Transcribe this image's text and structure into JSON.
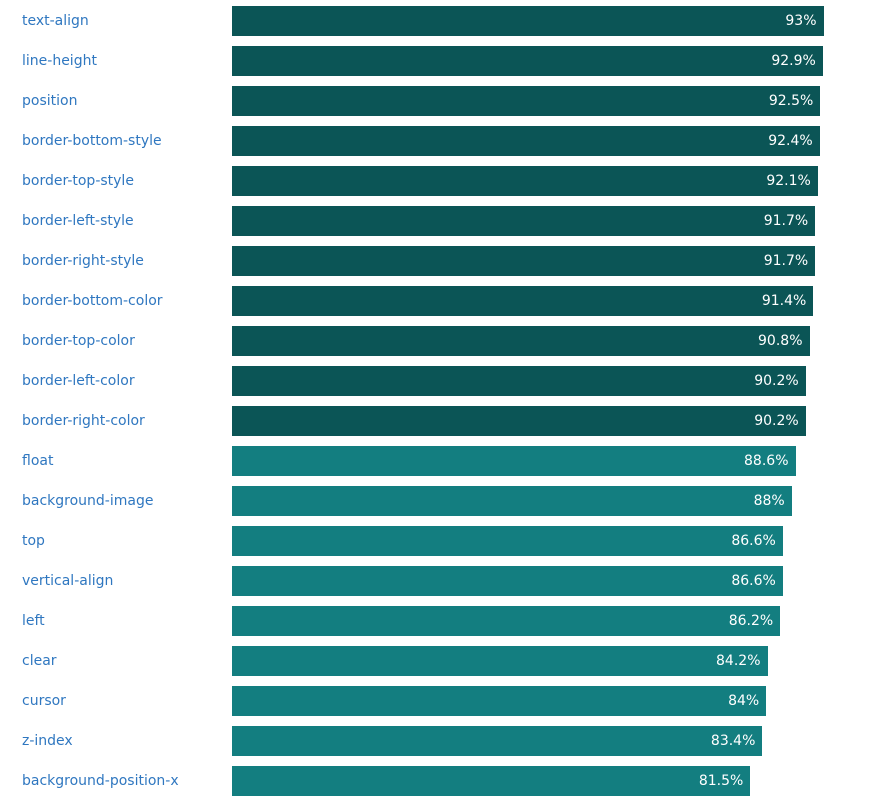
{
  "colors": {
    "label_link": "#2f77c0",
    "bar_dark": "#0b5556",
    "bar_light": "#137e80",
    "value_text": "#ffffff"
  },
  "chart_data": {
    "type": "bar",
    "orientation": "horizontal",
    "categories": [
      "text-align",
      "line-height",
      "position",
      "border-bottom-style",
      "border-top-style",
      "border-left-style",
      "border-right-style",
      "border-bottom-color",
      "border-top-color",
      "border-left-color",
      "border-right-color",
      "float",
      "background-image",
      "top",
      "vertical-align",
      "left",
      "clear",
      "cursor",
      "z-index",
      "background-position-x"
    ],
    "values": [
      93,
      92.9,
      92.5,
      92.4,
      92.1,
      91.7,
      91.7,
      91.4,
      90.8,
      90.2,
      90.2,
      88.6,
      88,
      86.6,
      86.6,
      86.2,
      84.2,
      84,
      83.4,
      81.5
    ],
    "value_labels": [
      "93%",
      "92.9%",
      "92.5%",
      "92.4%",
      "92.1%",
      "91.7%",
      "91.7%",
      "91.4%",
      "90.8%",
      "90.2%",
      "90.2%",
      "88.6%",
      "88%",
      "86.6%",
      "86.6%",
      "86.2%",
      "84.2%",
      "84%",
      "83.4%",
      "81.5%"
    ],
    "unit": "%",
    "xlim": [
      0,
      100
    ],
    "grid": false,
    "legend": "none",
    "bar_color_threshold": 90
  }
}
